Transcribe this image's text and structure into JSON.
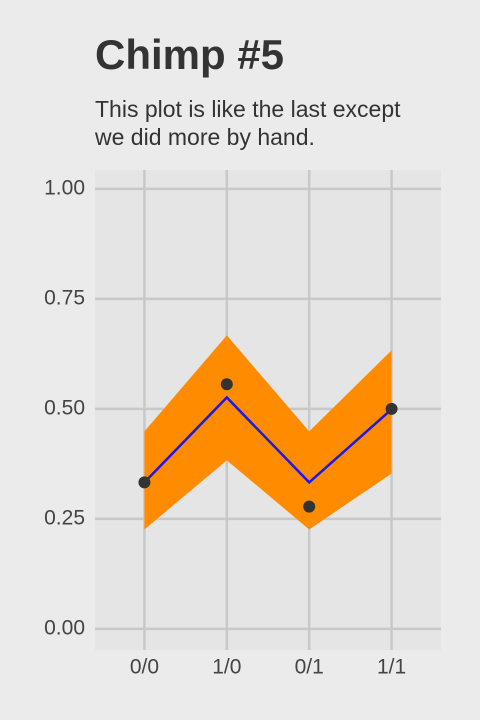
{
  "chart_data": {
    "type": "line",
    "title": "Chimp #5",
    "subtitle": [
      "This plot is like the last except",
      "we did more by hand."
    ],
    "categories": [
      "0/0",
      "1/0",
      "0/1",
      "1/1"
    ],
    "ribbon": {
      "color": "#ff8c00",
      "lower": [
        0.226,
        0.383,
        0.226,
        0.353
      ],
      "upper": [
        0.449,
        0.667,
        0.449,
        0.633
      ]
    },
    "line": {
      "color": "#1a1ae6",
      "values": [
        0.333,
        0.526,
        0.333,
        0.499
      ]
    },
    "points": {
      "color": "#333333",
      "values": [
        0.333,
        0.556,
        0.278,
        0.5
      ]
    },
    "ylim": [
      -0.048,
      1.043
    ],
    "yticks": [
      {
        "value": 0,
        "label": "0.00"
      },
      {
        "value": 0.25,
        "label": "0.25"
      },
      {
        "value": 0.5,
        "label": "0.50"
      },
      {
        "value": 0.75,
        "label": "0.75"
      },
      {
        "value": 1,
        "label": "1.00"
      }
    ],
    "grid": true
  }
}
